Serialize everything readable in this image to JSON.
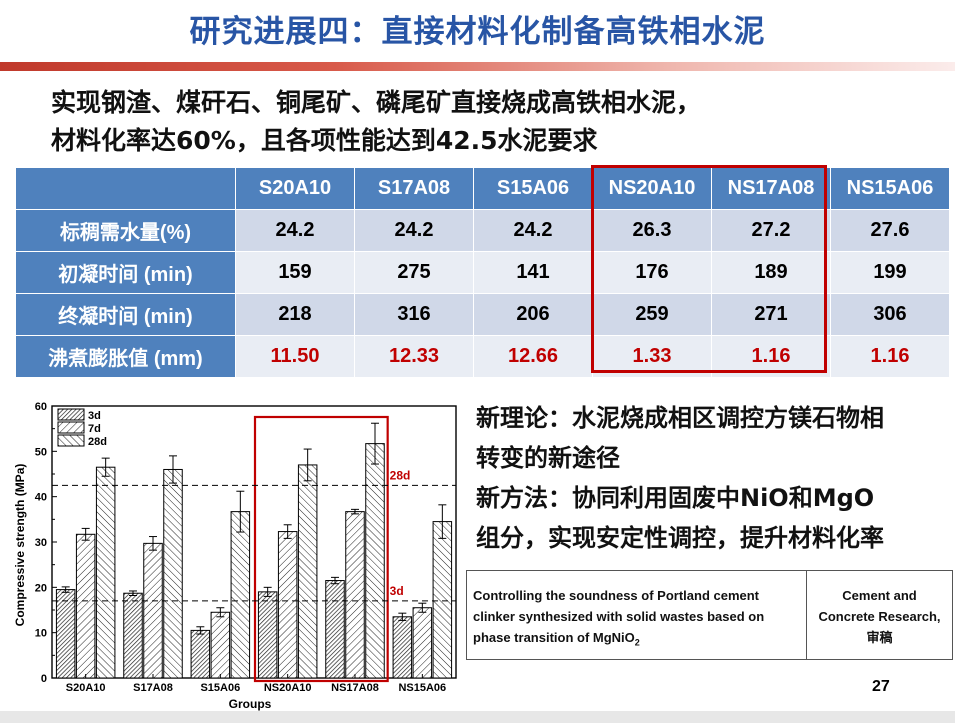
{
  "slide": {
    "title": "研究进展四：直接材料化制备高铁相水泥",
    "intro_line1": "实现钢渣、煤矸石、铜尾矿、磷尾矿直接烧成高铁相水泥，",
    "intro_line2": "材料化率达60%，且各项性能达到42.5水泥要求",
    "page_number": "27"
  },
  "table": {
    "columns": [
      "S20A10",
      "S17A08",
      "S15A06",
      "NS20A10",
      "NS17A08",
      "NS15A06"
    ],
    "rows": [
      {
        "label": "标稠需水量(%)",
        "values": [
          "24.2",
          "24.2",
          "24.2",
          "26.3",
          "27.2",
          "27.6"
        ]
      },
      {
        "label": "初凝时间 (min)",
        "values": [
          "159",
          "275",
          "141",
          "176",
          "189",
          "199"
        ]
      },
      {
        "label": "终凝时间 (min)",
        "values": [
          "218",
          "316",
          "206",
          "259",
          "271",
          "306"
        ]
      },
      {
        "label": "沸煮膨胀值 (mm)",
        "values": [
          "11.50",
          "12.33",
          "12.66",
          "1.33",
          "1.16",
          "1.16"
        ]
      }
    ],
    "highlight_color": "#c00000"
  },
  "right_text": {
    "line1": "新理论：水泥烧成相区调控方镁石物相",
    "line2": "转变的新途径",
    "line3": "新方法：协同利用固废中NiO和MgO",
    "line4": "组分，实现安定性调控，提升材料化率"
  },
  "reference": {
    "paper_line1": "Controlling the soundness of Portland cement",
    "paper_line2": "clinker synthesized with solid wastes based on",
    "paper_line3_prefix": "phase transition of MgNiO",
    "paper_line3_sub": "2",
    "journal_line1": "Cement and",
    "journal_line2": "Concrete Research,",
    "journal_line3": "审稿"
  },
  "chart_data": {
    "type": "bar",
    "categories": [
      "S20A10",
      "S17A08",
      "S15A06",
      "NS20A10",
      "NS17A08",
      "NS15A06"
    ],
    "series": [
      {
        "name": "3d",
        "values": [
          19.5,
          18.7,
          10.5,
          19.0,
          21.5,
          13.5
        ],
        "errors": [
          0.6,
          0.5,
          0.8,
          1.0,
          0.7,
          0.8
        ]
      },
      {
        "name": "7d",
        "values": [
          31.7,
          29.7,
          14.5,
          32.3,
          36.7,
          15.5
        ],
        "errors": [
          1.3,
          1.5,
          1.0,
          1.5,
          0.5,
          1.0
        ]
      },
      {
        "name": "28d",
        "values": [
          46.5,
          46.0,
          36.7,
          47.0,
          51.7,
          34.5
        ],
        "errors": [
          2.0,
          3.0,
          4.5,
          3.5,
          4.5,
          3.7
        ]
      }
    ],
    "reference_lines": [
      {
        "label": "28d",
        "value": 42.5
      },
      {
        "label": "3d",
        "value": 17.0
      }
    ],
    "xlabel": "Groups",
    "ylabel": "Compressive strength (MPa)",
    "ylim": [
      0,
      60
    ],
    "yticks": [
      0,
      10,
      20,
      30,
      40,
      50,
      60
    ],
    "legend_position": "top-left",
    "highlight_groups": [
      "NS20A10",
      "NS17A08"
    ],
    "highlight_color": "#c00000"
  }
}
